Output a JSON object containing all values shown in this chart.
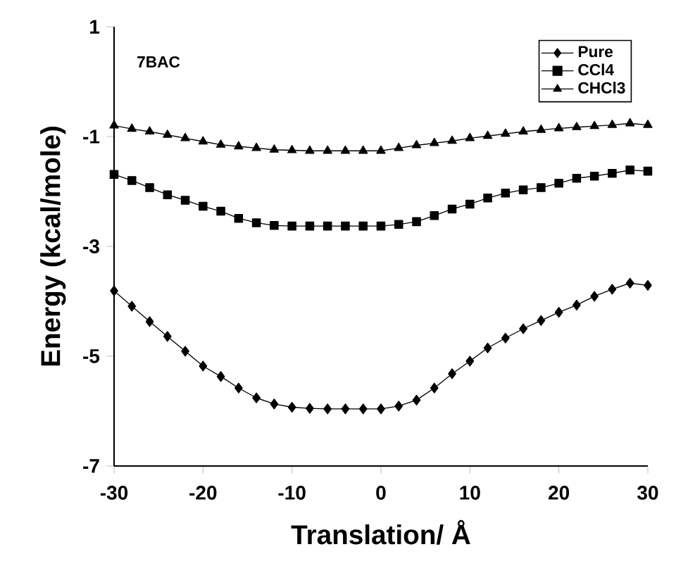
{
  "chart_data": {
    "type": "line",
    "xlabel": "Translation/ Å",
    "ylabel": "Energy (kcal/mole)",
    "annotations": [
      "7BAC"
    ],
    "x": [
      -30,
      -28,
      -26,
      -24,
      -22,
      -20,
      -18,
      -16,
      -14,
      -12,
      -10,
      -8,
      -6,
      -4,
      -2,
      0,
      2,
      4,
      6,
      8,
      10,
      12,
      14,
      16,
      18,
      20,
      22,
      24,
      26,
      28,
      30
    ],
    "xlim": [
      -30,
      30
    ],
    "xticks": [
      -30,
      -20,
      -10,
      0,
      10,
      20,
      30
    ],
    "ylim": [
      -7,
      1
    ],
    "yticks": [
      -7,
      -5,
      -3,
      -1,
      1
    ],
    "legend": "top right",
    "grid": false,
    "series": [
      {
        "name": "Pure",
        "color": "#000000",
        "marker": "diamond",
        "values": [
          -3.81,
          -4.09,
          -4.37,
          -4.64,
          -4.91,
          -5.18,
          -5.37,
          -5.58,
          -5.76,
          -5.87,
          -5.93,
          -5.95,
          -5.96,
          -5.96,
          -5.96,
          -5.96,
          -5.91,
          -5.8,
          -5.58,
          -5.32,
          -5.09,
          -4.85,
          -4.67,
          -4.5,
          -4.35,
          -4.2,
          -4.07,
          -3.91,
          -3.78,
          -3.67,
          -3.71
        ]
      },
      {
        "name": "CCl4",
        "color": "#000000",
        "marker": "square",
        "values": [
          -1.69,
          -1.8,
          -1.93,
          -2.06,
          -2.16,
          -2.27,
          -2.36,
          -2.49,
          -2.57,
          -2.62,
          -2.63,
          -2.63,
          -2.63,
          -2.63,
          -2.63,
          -2.63,
          -2.6,
          -2.55,
          -2.44,
          -2.32,
          -2.23,
          -2.12,
          -2.03,
          -1.97,
          -1.93,
          -1.85,
          -1.76,
          -1.72,
          -1.67,
          -1.61,
          -1.63
        ]
      },
      {
        "name": "CHCl3",
        "color": "#000000",
        "marker": "triangle",
        "values": [
          -0.8,
          -0.86,
          -0.91,
          -0.97,
          -1.03,
          -1.09,
          -1.15,
          -1.18,
          -1.21,
          -1.24,
          -1.25,
          -1.26,
          -1.26,
          -1.26,
          -1.26,
          -1.26,
          -1.21,
          -1.16,
          -1.12,
          -1.08,
          -1.03,
          -0.99,
          -0.95,
          -0.91,
          -0.88,
          -0.85,
          -0.83,
          -0.81,
          -0.79,
          -0.76,
          -0.79
        ]
      }
    ]
  }
}
